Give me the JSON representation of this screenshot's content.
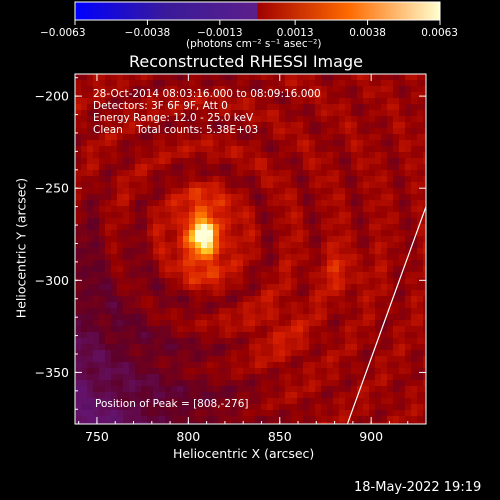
{
  "chart_data": {
    "type": "heatmap",
    "title": "Reconstructed RHESSI Image",
    "xlabel": "Heliocentric X (arcsec)",
    "ylabel": "Heliocentric Y (arcsec)",
    "xlim": [
      738,
      930
    ],
    "ylim": [
      -378,
      -188
    ],
    "x_ticks": [
      750,
      800,
      850,
      900
    ],
    "y_ticks": [
      -200,
      -250,
      -300,
      -350
    ],
    "x_tick_labels": [
      "750",
      "800",
      "850",
      "900"
    ],
    "y_tick_labels": [
      "−200",
      "−250",
      "−300",
      "−350"
    ],
    "colorbar": {
      "min": -0.0063,
      "max": 0.0063,
      "ticks": [
        -0.0063,
        -0.0038,
        -0.0013,
        0.0013,
        0.0038,
        0.0063
      ],
      "tick_labels": [
        "−0.0063",
        "−0.0038",
        "−0.0013",
        "0.0013",
        "0.0038",
        "0.0063"
      ],
      "unit_label": "(photons cm⁻² s⁻¹ asec⁻²)",
      "colormap": [
        "#0000ff",
        "#3a1a9a",
        "#5c1f8a",
        "#ff0000",
        "#ff8c00",
        "#ffffd0"
      ]
    },
    "annotations": [
      "28-Oct-2014 08:03:16.000 to 08:09:16.000",
      "Detectors: 3F 6F 9F, Att 0",
      "Energy Range: 12.0 - 25.0 keV",
      "Clean    Total counts: 5.38E+03"
    ],
    "peak_label": "Position of Peak = [808,-276]",
    "peak": {
      "x": 808,
      "y": -276
    },
    "limb_line": [
      [
        887,
        -378
      ],
      [
        930,
        -260
      ]
    ],
    "timestamp": "18-May-2022 19:19"
  }
}
